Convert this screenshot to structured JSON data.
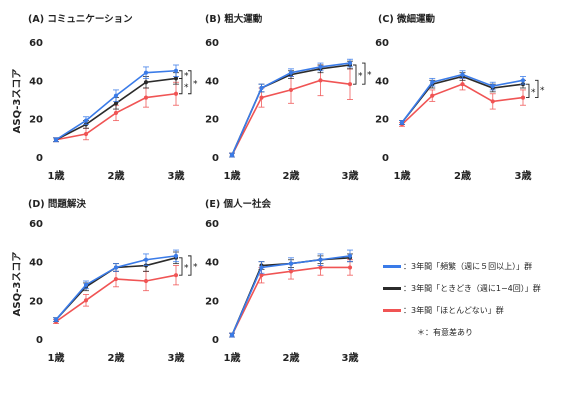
{
  "y_axis_label": "ASQ-3スコア",
  "colors": {
    "frequent": "#3a7be8",
    "sometimes": "#2b2b2b",
    "rarely": "#f05454"
  },
  "chart_data": [
    {
      "type": "line",
      "title": "(A) コミュニケーション",
      "x": [
        "1歳",
        "",
        "2歳",
        "",
        "3歳"
      ],
      "ylim": [
        0,
        60
      ],
      "yticks": [
        "0",
        "20",
        "40",
        "60"
      ],
      "series": [
        {
          "key": "frequent",
          "values": [
            9,
            19,
            32,
            44,
            45
          ],
          "err": [
            1,
            2,
            3,
            3,
            3
          ]
        },
        {
          "key": "sometimes",
          "values": [
            9,
            17,
            28,
            39,
            41
          ],
          "err": [
            1,
            2,
            3,
            3,
            3
          ]
        },
        {
          "key": "rarely",
          "values": [
            9,
            12,
            23,
            31,
            33
          ],
          "err": [
            1,
            3,
            4,
            5,
            6
          ]
        }
      ],
      "significance": [
        "*",
        "*",
        "*"
      ]
    },
    {
      "type": "line",
      "title": "(B) 粗大運動",
      "x": [
        "1歳",
        "",
        "2歳",
        "",
        "3歳"
      ],
      "ylim": [
        0,
        60
      ],
      "yticks": [
        "0",
        "20",
        "40",
        "60"
      ],
      "series": [
        {
          "key": "frequent",
          "values": [
            1,
            36,
            44,
            47,
            49
          ],
          "err": [
            1,
            2,
            2,
            2,
            2
          ]
        },
        {
          "key": "sometimes",
          "values": [
            1,
            36,
            43,
            46,
            48
          ],
          "err": [
            1,
            2,
            2,
            2,
            2
          ]
        },
        {
          "key": "rarely",
          "values": [
            1,
            31,
            35,
            40,
            38
          ],
          "err": [
            1,
            5,
            7,
            8,
            8
          ]
        }
      ],
      "significance": [
        "*",
        "*"
      ]
    },
    {
      "type": "line",
      "title": "(C) 微細運動",
      "x": [
        "1歳",
        "",
        "2歳",
        "",
        "3歳"
      ],
      "ylim": [
        0,
        60
      ],
      "yticks": [
        "0",
        "20",
        "40",
        "60"
      ],
      "series": [
        {
          "key": "frequent",
          "values": [
            18,
            39,
            43,
            37,
            40
          ],
          "err": [
            1,
            2,
            2,
            2,
            2
          ]
        },
        {
          "key": "sometimes",
          "values": [
            18,
            38,
            42,
            36,
            38
          ],
          "err": [
            1,
            2,
            2,
            2,
            2
          ]
        },
        {
          "key": "rarely",
          "values": [
            17,
            32,
            38,
            29,
            31
          ],
          "err": [
            1,
            3,
            3,
            4,
            4
          ]
        }
      ],
      "significance": [
        "*",
        "*"
      ]
    },
    {
      "type": "line",
      "title": "(D) 問題解決",
      "x": [
        "1歳",
        "",
        "2歳",
        "",
        "3歳"
      ],
      "ylim": [
        0,
        60
      ],
      "yticks": [
        "0",
        "20",
        "40",
        "60"
      ],
      "series": [
        {
          "key": "frequent",
          "values": [
            10,
            28,
            37,
            41,
            43
          ],
          "err": [
            1,
            2,
            2,
            3,
            3
          ]
        },
        {
          "key": "sometimes",
          "values": [
            10,
            27,
            37,
            38,
            42
          ],
          "err": [
            1,
            2,
            2,
            3,
            3
          ]
        },
        {
          "key": "rarely",
          "values": [
            9,
            20,
            31,
            30,
            33
          ],
          "err": [
            1,
            3,
            4,
            5,
            5
          ]
        }
      ],
      "significance": [
        "*",
        "*"
      ]
    },
    {
      "type": "line",
      "title": "(E) 個人ー社会",
      "x": [
        "1歳",
        "",
        "2歳",
        "",
        "3歳"
      ],
      "ylim": [
        0,
        60
      ],
      "yticks": [
        "0",
        "20",
        "40",
        "60"
      ],
      "series": [
        {
          "key": "frequent",
          "values": [
            2,
            37,
            39,
            41,
            43
          ],
          "err": [
            1,
            3,
            3,
            3,
            3
          ]
        },
        {
          "key": "sometimes",
          "values": [
            2,
            38,
            39,
            41,
            42
          ],
          "err": [
            1,
            2,
            2,
            2,
            2
          ]
        },
        {
          "key": "rarely",
          "values": [
            2,
            33,
            35,
            37,
            37
          ],
          "err": [
            1,
            4,
            4,
            4,
            4
          ]
        }
      ],
      "significance": []
    }
  ],
  "legend": [
    {
      "key": "frequent",
      "label": "：3年間「頻繁（週に５回以上）」群"
    },
    {
      "key": "sometimes",
      "label": "：3年間「ときどき（週に1−4回）」群"
    },
    {
      "key": "rarely",
      "label": "：3年間「ほとんどない」群"
    }
  ],
  "significance_note": "＊：有意差あり"
}
